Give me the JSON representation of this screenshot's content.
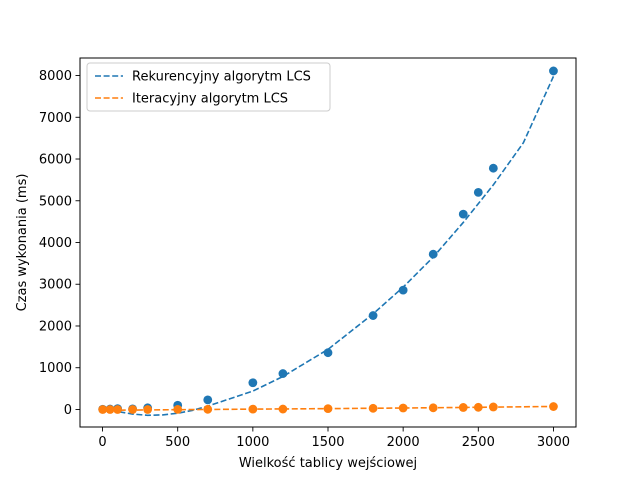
{
  "chart_data": {
    "type": "scatter",
    "title": "",
    "xlabel": "Wielkość tablicy wejściowej",
    "ylabel": "Czas wykonania (ms)",
    "xlim": [
      -150,
      3150
    ],
    "ylim": [
      -420,
      8420
    ],
    "xticks": [
      0,
      500,
      1000,
      1500,
      2000,
      2500,
      3000
    ],
    "yticks": [
      0,
      1000,
      2000,
      3000,
      4000,
      5000,
      6000,
      7000,
      8000
    ],
    "grid": false,
    "legend_position": "top-left",
    "series": [
      {
        "name": "Rekurencyjny algorytm LCS",
        "color": "#1f77b4",
        "points": {
          "x": [
            1,
            50,
            100,
            200,
            300,
            500,
            700,
            1000,
            1200,
            1500,
            1800,
            2000,
            2200,
            2400,
            2500,
            2600,
            3000
          ],
          "y": [
            5,
            10,
            20,
            15,
            40,
            100,
            230,
            640,
            860,
            1360,
            2250,
            2860,
            3720,
            4680,
            5200,
            5780,
            8110
          ]
        },
        "fit_line": {
          "style": "dashed",
          "x": [
            0,
            100,
            200,
            300,
            400,
            500,
            600,
            700,
            800,
            1000,
            1200,
            1500,
            1800,
            2000,
            2200,
            2400,
            2600,
            2800,
            3000
          ],
          "y": [
            30,
            -50,
            -110,
            -140,
            -130,
            -90,
            -20,
            80,
            200,
            440,
            790,
            1440,
            2290,
            2930,
            3650,
            4480,
            5380,
            6390,
            7980
          ]
        }
      },
      {
        "name": "Iteracyjny algorytm LCS",
        "color": "#ff7f0e",
        "points": {
          "x": [
            1,
            50,
            100,
            200,
            300,
            500,
            700,
            1000,
            1200,
            1500,
            1800,
            2000,
            2200,
            2400,
            2500,
            2600,
            3000
          ],
          "y": [
            0,
            0,
            0,
            0,
            0,
            2,
            4,
            8,
            10,
            20,
            28,
            35,
            40,
            48,
            52,
            60,
            70
          ]
        },
        "fit_line": {
          "style": "dashed",
          "x": [
            0,
            500,
            1000,
            1500,
            2000,
            2500,
            3000
          ],
          "y": [
            -20,
            -5,
            8,
            20,
            35,
            52,
            72
          ]
        }
      }
    ]
  }
}
